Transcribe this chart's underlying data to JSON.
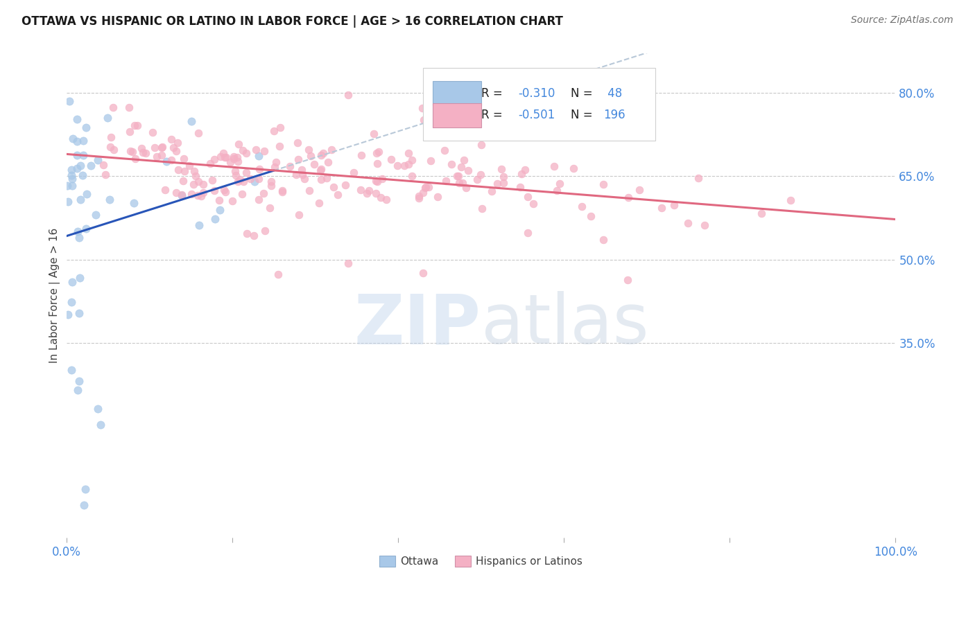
{
  "title": "OTTAWA VS HISPANIC OR LATINO IN LABOR FORCE | AGE > 16 CORRELATION CHART",
  "source": "Source: ZipAtlas.com",
  "ylabel": "In Labor Force | Age > 16",
  "right_yticks": [
    "35.0%",
    "50.0%",
    "65.0%",
    "80.0%"
  ],
  "right_ytick_vals": [
    0.35,
    0.5,
    0.65,
    0.8
  ],
  "legend_ottawa": "Ottawa",
  "legend_hispanic": "Hispanics or Latinos",
  "ottawa_color": "#a8c8e8",
  "hispanic_color": "#f4b0c4",
  "ottawa_line_color": "#2855b8",
  "hispanic_line_color": "#e06880",
  "dashed_line_color": "#b8c8d8",
  "scatter_alpha": 0.75,
  "ottawa_N": 48,
  "hispanic_N": 196,
  "xlim": [
    0.0,
    1.0
  ],
  "ylim": [
    0.0,
    0.87
  ],
  "grid_color": "#c8c8c8",
  "background_color": "#ffffff",
  "title_color": "#1a1a1a",
  "source_color": "#707070",
  "label_color": "#4488dd",
  "ottawa_scatter_seed": 17,
  "hispanic_scatter_seed": 42
}
